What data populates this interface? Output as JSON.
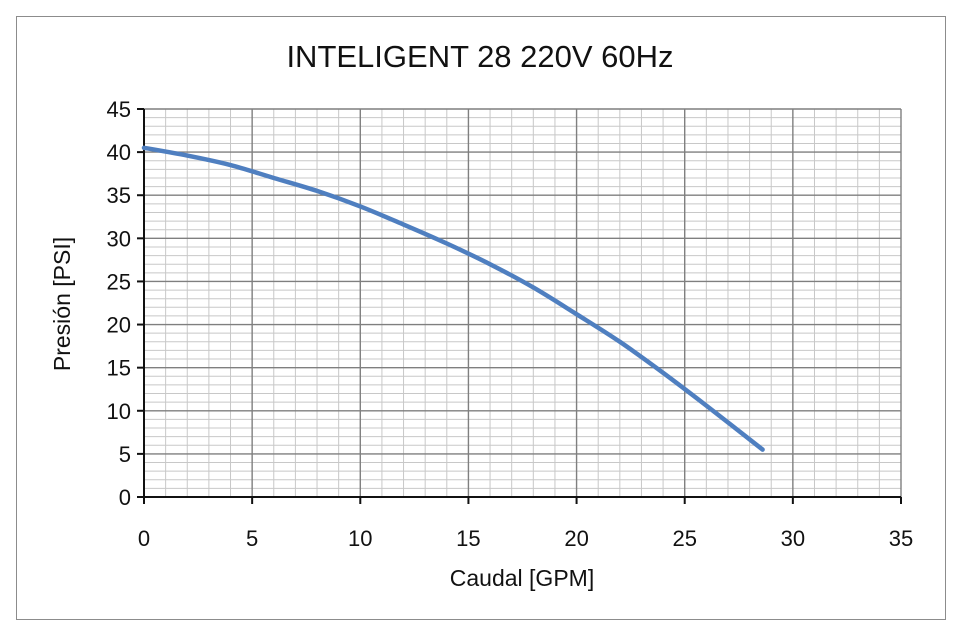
{
  "chart_data": {
    "type": "line",
    "title": "INTELIGENT 28 220V 60Hz",
    "xlabel": "Caudal [GPM]",
    "ylabel": "Presión [PSI]",
    "xlim": [
      0,
      35
    ],
    "ylim": [
      0,
      45
    ],
    "x_major_step": 5,
    "y_major_step": 5,
    "x_minor_step": 1,
    "y_minor_step": 1,
    "x_ticks": [
      "0",
      "5",
      "10",
      "15",
      "20",
      "25",
      "30",
      "35"
    ],
    "y_ticks": [
      "0",
      "5",
      "10",
      "15",
      "20",
      "25",
      "30",
      "35",
      "40",
      "45"
    ],
    "grid": true,
    "legend": "none",
    "series_color": "#4f7fc0",
    "series": [
      {
        "x": [
          0,
          2,
          4,
          6,
          8,
          10,
          12,
          14,
          16,
          18,
          20,
          22,
          24,
          26,
          28.6
        ],
        "y": [
          40.5,
          39.6,
          38.5,
          37.0,
          35.5,
          33.7,
          31.6,
          29.4,
          27.0,
          24.3,
          21.2,
          18.0,
          14.4,
          10.6,
          5.5
        ]
      }
    ]
  }
}
